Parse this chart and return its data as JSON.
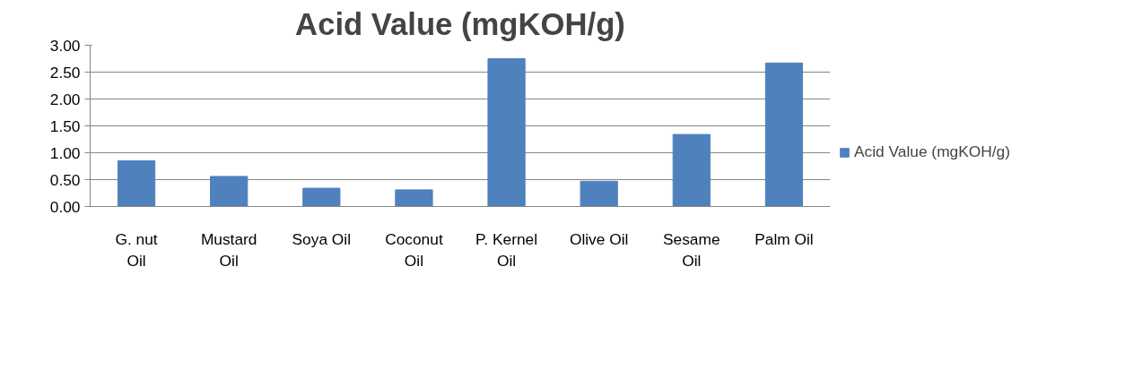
{
  "chart_data": {
    "type": "bar",
    "title": "Acid Value (mgKOH/g)",
    "categories": [
      "G. nut Oil",
      "Mustard Oil",
      "Soya Oil",
      "Coconut Oil",
      "P. Kernel Oil",
      "Olive Oil",
      "Sesame Oil",
      "Palm Oil"
    ],
    "series": [
      {
        "name": "Acid Value (mgKOH/g)",
        "color": "#4f81bd",
        "values": [
          0.85,
          0.56,
          0.34,
          0.31,
          2.75,
          0.47,
          1.34,
          2.67
        ]
      }
    ],
    "ylim": [
      0,
      3
    ],
    "yticks": [
      {
        "value": 0,
        "label": "0.00"
      },
      {
        "value": 0.5,
        "label": "0.50"
      },
      {
        "value": 1,
        "label": "1.00"
      },
      {
        "value": 1.5,
        "label": "1.50"
      },
      {
        "value": 2,
        "label": "2.00"
      },
      {
        "value": 2.5,
        "label": "2.50"
      },
      {
        "value": 3,
        "label": "3.00"
      }
    ],
    "grid": "y",
    "legend": "right"
  }
}
